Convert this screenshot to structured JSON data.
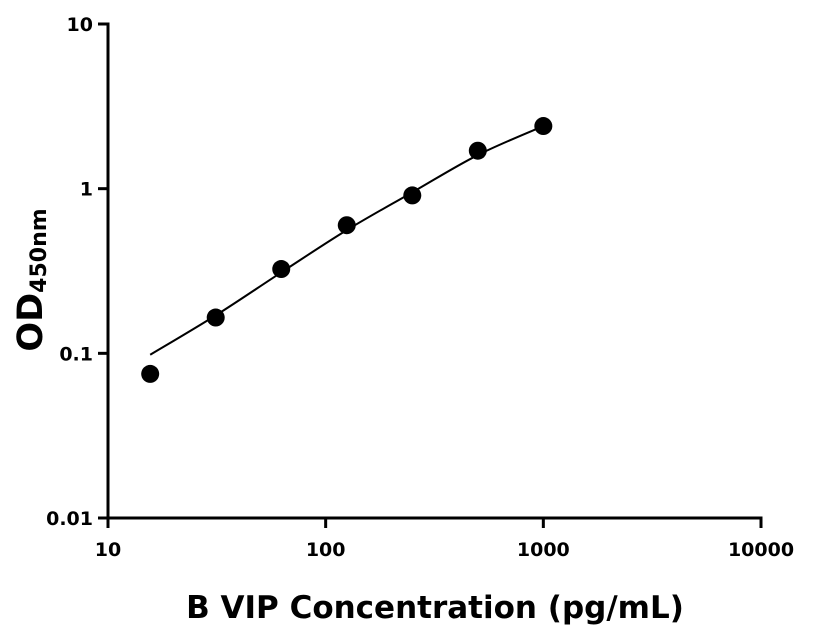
{
  "chart_data": {
    "type": "scatter",
    "x_label": "B VIP Concentration (pg/mL)",
    "y_label": "OD",
    "y_label_subscript": "450nm",
    "x": [
      15.625,
      31.25,
      62.5,
      125,
      250,
      500,
      1000
    ],
    "values": [
      0.075,
      0.165,
      0.325,
      0.6,
      0.91,
      1.7,
      2.4
    ],
    "color": "#000000",
    "fit": {
      "x": [
        15.625,
        31.25,
        62.5,
        125,
        250,
        500,
        1000
      ],
      "values": [
        0.098,
        0.17,
        0.31,
        0.56,
        0.95,
        1.6,
        2.4
      ]
    },
    "xlog": true,
    "ylog": true,
    "xlim": [
      10,
      10000
    ],
    "ylim": [
      0.01,
      10
    ],
    "xticks": [
      10,
      100,
      1000,
      10000
    ],
    "yticks": [
      0.01,
      0.1,
      1,
      10
    ]
  }
}
